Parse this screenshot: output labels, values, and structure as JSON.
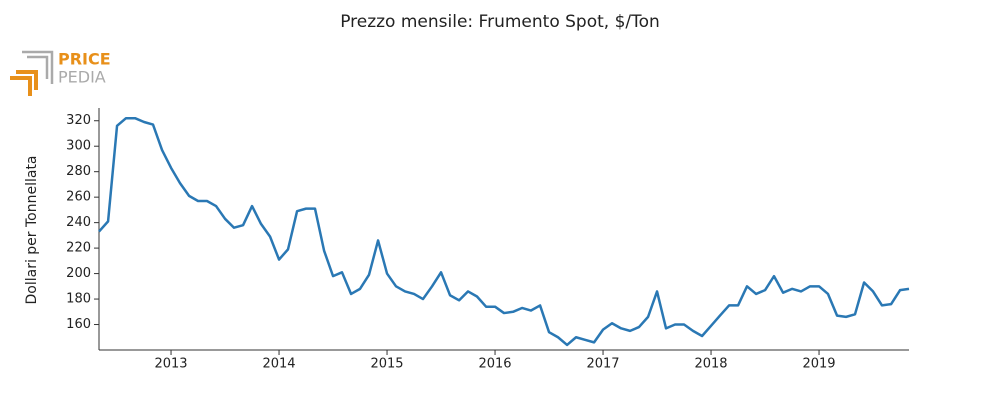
{
  "logo": {
    "line1": "PRICE",
    "line2": "PEDIA"
  },
  "chart_data": {
    "type": "line",
    "title": "Prezzo mensile: Frumento Spot, $/Ton",
    "y_label": "Dollari per Tonnellata",
    "x": [
      2012.333,
      2012.417,
      2012.5,
      2012.583,
      2012.667,
      2012.75,
      2012.833,
      2012.917,
      2013,
      2013.083,
      2013.167,
      2013.25,
      2013.333,
      2013.417,
      2013.5,
      2013.583,
      2013.667,
      2013.75,
      2013.833,
      2013.917,
      2014,
      2014.083,
      2014.167,
      2014.25,
      2014.333,
      2014.417,
      2014.5,
      2014.583,
      2014.667,
      2014.75,
      2014.833,
      2014.917,
      2015,
      2015.083,
      2015.167,
      2015.25,
      2015.333,
      2015.417,
      2015.5,
      2015.583,
      2015.667,
      2015.75,
      2015.833,
      2015.917,
      2016,
      2016.083,
      2016.167,
      2016.25,
      2016.333,
      2016.417,
      2016.5,
      2016.583,
      2016.667,
      2016.75,
      2016.833,
      2016.917,
      2017,
      2017.083,
      2017.167,
      2017.25,
      2017.333,
      2017.417,
      2017.5,
      2017.583,
      2017.667,
      2017.75,
      2017.833,
      2017.917,
      2018,
      2018.083,
      2018.167,
      2018.25,
      2018.333,
      2018.417,
      2018.5,
      2018.583,
      2018.667,
      2018.75,
      2018.833,
      2018.917,
      2019,
      2019.083,
      2019.167,
      2019.25,
      2019.333,
      2019.417,
      2019.5,
      2019.583,
      2019.667,
      2019.75,
      2019.833
    ],
    "series": [
      {
        "name": "Frumento Spot",
        "color": "#2a78b4",
        "values": [
          233,
          241,
          316,
          322,
          322,
          319,
          317,
          297,
          283,
          271,
          261,
          257,
          257,
          253,
          243,
          236,
          238,
          253,
          239,
          229,
          211,
          219,
          249,
          251,
          251,
          218,
          198,
          201,
          184,
          188,
          199,
          226,
          200,
          190,
          186,
          184,
          180,
          190,
          201,
          183,
          179,
          186,
          182,
          174,
          174,
          169,
          170,
          173,
          171,
          175,
          154,
          150,
          144,
          150,
          148,
          146,
          156,
          161,
          157,
          155,
          158,
          166,
          186,
          157,
          160,
          160,
          155,
          151,
          159,
          167,
          175,
          175,
          190,
          184,
          187,
          198,
          185,
          188,
          186,
          190,
          190,
          184,
          167,
          166,
          168,
          193,
          186,
          175,
          176,
          187,
          188
        ]
      }
    ],
    "xlim": [
      2012.333,
      2019.833
    ],
    "xticks": [
      2013,
      2014,
      2015,
      2016,
      2017,
      2018,
      2019
    ],
    "ylim": [
      140,
      330
    ],
    "yticks": [
      160,
      180,
      200,
      220,
      240,
      260,
      280,
      300,
      320
    ]
  }
}
